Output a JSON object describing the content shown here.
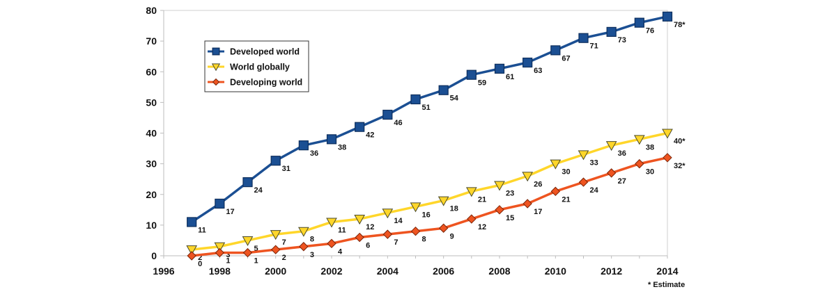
{
  "chart_data": {
    "type": "line",
    "title": "",
    "xlabel": "",
    "ylabel": "",
    "xlim": [
      1996,
      2014
    ],
    "ylim": [
      0,
      80
    ],
    "x_ticks": [
      "1996",
      "1998",
      "2000",
      "2002",
      "2004",
      "2006",
      "2008",
      "2010",
      "2012",
      "2014"
    ],
    "y_ticks": [
      "0",
      "10",
      "20",
      "30",
      "40",
      "50",
      "60",
      "70",
      "80"
    ],
    "grid": false,
    "legend_position": "top-left",
    "footnote": "* Estimate",
    "series": [
      {
        "name": "Developed world",
        "color": "#1b4f93",
        "marker": "square",
        "x": [
          1997,
          1998,
          1999,
          2000,
          2001,
          2002,
          2003,
          2004,
          2005,
          2006,
          2007,
          2008,
          2009,
          2010,
          2011,
          2012,
          2013,
          2014
        ],
        "values": [
          11,
          17,
          24,
          31,
          36,
          38,
          42,
          46,
          51,
          54,
          59,
          61,
          63,
          67,
          71,
          73,
          76,
          78
        ],
        "labels": [
          "11",
          "17",
          "24",
          "31",
          "36",
          "38",
          "42",
          "46",
          "51",
          "54",
          "59",
          "61",
          "63",
          "67",
          "71",
          "73",
          "76",
          "78*"
        ]
      },
      {
        "name": "World globally",
        "color": "#ffd62a",
        "marker": "triangle-down",
        "x": [
          1997,
          1998,
          1999,
          2000,
          2001,
          2002,
          2003,
          2004,
          2005,
          2006,
          2007,
          2008,
          2009,
          2010,
          2011,
          2012,
          2013,
          2014
        ],
        "values": [
          2,
          3,
          5,
          7,
          8,
          11,
          12,
          14,
          16,
          18,
          21,
          23,
          26,
          30,
          33,
          36,
          38,
          40
        ],
        "labels": [
          "2",
          "3",
          "5",
          "7",
          "8",
          "11",
          "12",
          "14",
          "16",
          "18",
          "21",
          "23",
          "26",
          "30",
          "33",
          "36",
          "38",
          "40*"
        ]
      },
      {
        "name": "Developing world",
        "color": "#ee5420",
        "marker": "diamond",
        "x": [
          1997,
          1998,
          1999,
          2000,
          2001,
          2002,
          2003,
          2004,
          2005,
          2006,
          2007,
          2008,
          2009,
          2010,
          2011,
          2012,
          2013,
          2014
        ],
        "values": [
          0,
          1,
          1,
          2,
          3,
          4,
          6,
          7,
          8,
          9,
          12,
          15,
          17,
          21,
          24,
          27,
          30,
          32
        ],
        "labels": [
          "0",
          "1",
          "1",
          "2",
          "3",
          "4",
          "6",
          "7",
          "8",
          "9",
          "12",
          "15",
          "17",
          "21",
          "24",
          "27",
          "30",
          "32*"
        ]
      }
    ]
  }
}
